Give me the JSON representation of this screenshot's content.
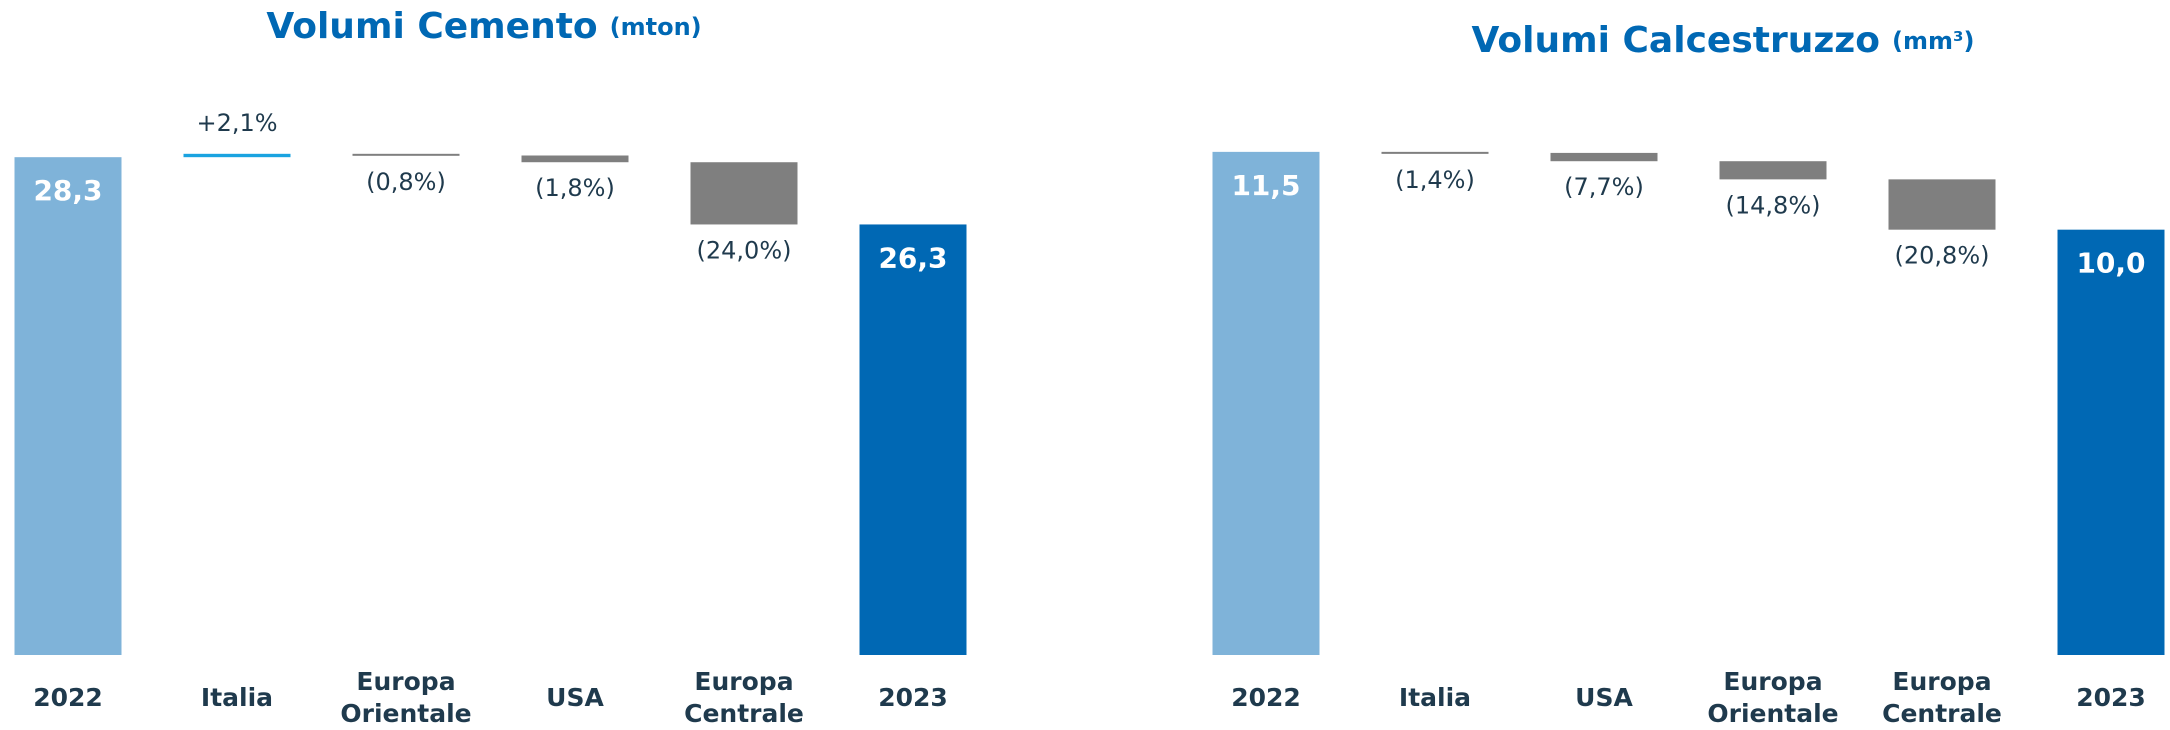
{
  "chart_data": [
    {
      "type": "waterfall",
      "title": "Volumi Cemento",
      "subtitle": "(mton)",
      "categories": [
        "2022",
        "Italia",
        "Europa Orientale",
        "USA",
        "Europa Centrale",
        "2023"
      ],
      "values": [
        28.3,
        0.1,
        -0.05,
        -0.2,
        -1.85,
        26.3
      ],
      "value_labels": [
        "28,3",
        "+2,1%",
        "(0,8%)",
        "(1,8%)",
        "(24,0%)",
        "26,3"
      ],
      "kinds": [
        "total",
        "step",
        "step",
        "step",
        "step",
        "total"
      ],
      "colors": [
        "#7fb3d9",
        "#1aa3e0",
        "#7f7f7f",
        "#7f7f7f",
        "#7f7f7f",
        "#0068b4"
      ],
      "ylim": [
        13.5,
        30
      ]
    },
    {
      "type": "waterfall",
      "title": "Volumi Calcestruzzo",
      "subtitle": "(mm³)",
      "categories": [
        "2022",
        "Italia",
        "USA",
        "Europa Orientale",
        "Europa Centrale",
        "2023"
      ],
      "values": [
        11.5,
        -0.02,
        -0.16,
        -0.35,
        -0.97,
        10.0
      ],
      "value_labels": [
        "11,5",
        "(1,4%)",
        "(7,7%)",
        "(14,8%)",
        "(20,8%)",
        "10,0"
      ],
      "kinds": [
        "total",
        "step",
        "step",
        "step",
        "step",
        "total"
      ],
      "colors": [
        "#7fb3d9",
        "#7f7f7f",
        "#7f7f7f",
        "#7f7f7f",
        "#7f7f7f",
        "#0068b4"
      ],
      "ylim": [
        1.8,
        12.5
      ]
    }
  ]
}
